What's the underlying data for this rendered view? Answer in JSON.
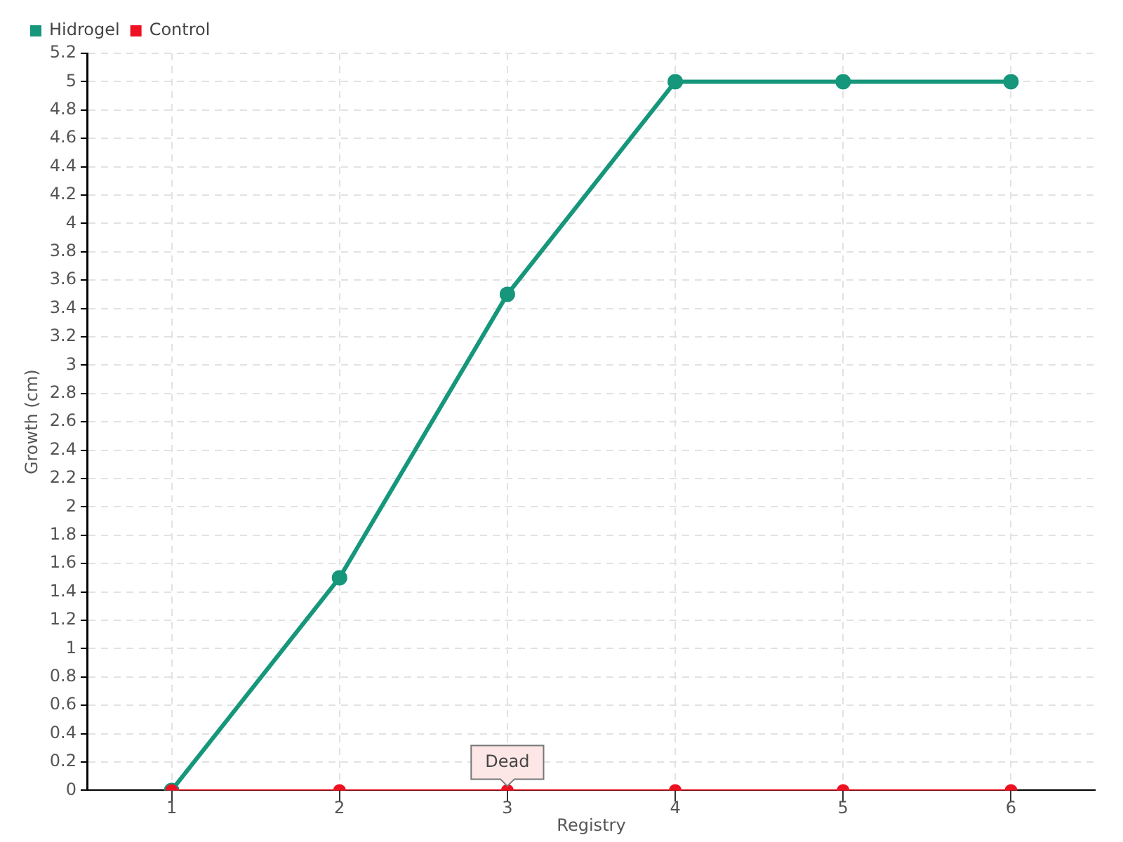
{
  "chart_data": {
    "type": "line",
    "xlabel": "Registry",
    "ylabel": "Growth (cm)",
    "categories": [
      "1",
      "2",
      "3",
      "4",
      "5",
      "6"
    ],
    "series": [
      {
        "name": "Hidrogel",
        "color": "#16967a",
        "values": [
          0,
          1.5,
          3.5,
          5,
          5,
          5
        ]
      },
      {
        "name": "Control",
        "color": "#ee1122",
        "values": [
          0,
          0,
          0,
          0,
          0,
          0
        ]
      }
    ],
    "ylim": [
      0,
      5.2
    ],
    "yticks": [
      0,
      0.2,
      0.4,
      0.6,
      0.8,
      1,
      1.2,
      1.4,
      1.6,
      1.8,
      2,
      2.2,
      2.4,
      2.6,
      2.8,
      3,
      3.2,
      3.4,
      3.6,
      3.8,
      4,
      4.2,
      4.4,
      4.6,
      4.8,
      5,
      5.2
    ],
    "annotations": [
      {
        "text": "Dead",
        "x": "3",
        "y": 0
      }
    ],
    "grid": true,
    "legend": "top left",
    "marker": "circle",
    "line_style": "solid"
  }
}
